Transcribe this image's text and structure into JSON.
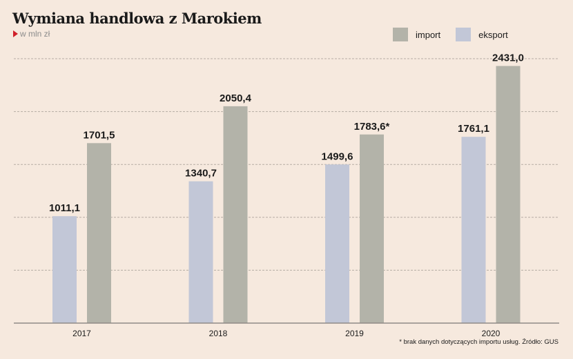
{
  "header": {
    "title": "Wymiana handlowa z Marokiem",
    "unit": "w mln zł"
  },
  "legend": [
    {
      "name": "import",
      "color": "#b3b3a9"
    },
    {
      "name": "eksport",
      "color": "#c2c7d7"
    }
  ],
  "footnote": "* brak danych dotyczących importu usług. Źródło: GUS",
  "chart_data": {
    "type": "bar",
    "title": "Wymiana handlowa z Marokiem",
    "subtitle": "w mln zł",
    "categories": [
      "2017",
      "2018",
      "2019",
      "2020"
    ],
    "series": [
      {
        "name": "eksport",
        "color": "#c2c7d7",
        "values": [
          1011.1,
          1340.7,
          1499.6,
          1761.1
        ],
        "labels": [
          "1011,1",
          "1340,7",
          "1499,6",
          "1761,1"
        ]
      },
      {
        "name": "import",
        "color": "#b3b3a9",
        "values": [
          1701.5,
          2050.4,
          1783.6,
          2431.0
        ],
        "labels": [
          "1701,5",
          "2050,4",
          "1783,6*",
          "2431,0"
        ]
      }
    ],
    "ylim": [
      0,
      2500
    ],
    "gridlines": [
      500,
      1000,
      1500,
      2000,
      2500
    ],
    "grid": true,
    "legend_position": "top-right",
    "xlabel": "",
    "ylabel": ""
  }
}
